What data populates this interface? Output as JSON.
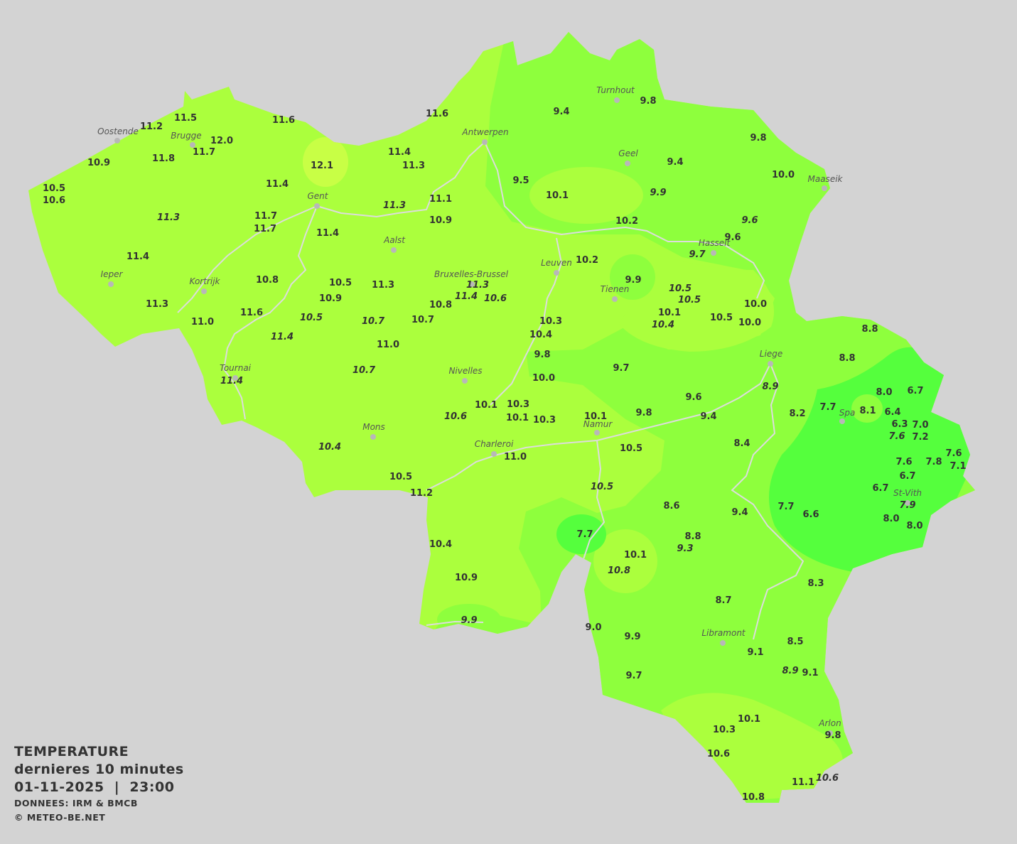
{
  "legend": {
    "title": "TEMPERATURE",
    "period": "dernieres 10 minutes",
    "datetime": "01-11-2025  |  23:00",
    "source": "DONNEES: IRM & BMCB",
    "copyright": "© METEO-BE.NET"
  },
  "colors": {
    "background": "#d3d3d3",
    "zone_warm": "#abff3d",
    "zone_warmest": "#c8ff45",
    "zone_mid": "#8eff3d",
    "zone_cold": "#55ff3d",
    "rivers": "#dcdcdc",
    "text": "#333333"
  },
  "cities": [
    "Oostende",
    "Brugge",
    "Antwerpen",
    "Turnhout",
    "Geel",
    "Maaseik",
    "Gent",
    "Aalst",
    "Hasselt",
    "Leuven",
    "Bruxelles-Brussel",
    "Ieper",
    "Kortrijk",
    "Tienen",
    "Liege",
    "Tournai",
    "Nivelles",
    "Spa",
    "Mons",
    "Charleroi",
    "Namur",
    "St-Vith",
    "Libramont",
    "Arlon"
  ],
  "stations": [
    {
      "v": "11.5"
    },
    {
      "v": "11.2"
    },
    {
      "v": "12.0"
    },
    {
      "v": "11.7"
    },
    {
      "v": "10.9"
    },
    {
      "v": "11.8"
    },
    {
      "v": "11.6"
    },
    {
      "v": "12.1"
    },
    {
      "v": "11.6"
    },
    {
      "v": "10.5"
    },
    {
      "v": "10.6"
    },
    {
      "v": "11.4"
    },
    {
      "v": "11.4"
    },
    {
      "v": "11.3"
    },
    {
      "v": "11.3",
      "italic": true
    },
    {
      "v": "11.7"
    },
    {
      "v": "11.7"
    },
    {
      "v": "11.3",
      "italic": true
    },
    {
      "v": "11.1"
    },
    {
      "v": "10.9"
    },
    {
      "v": "11.4"
    },
    {
      "v": "11.4"
    },
    {
      "v": "10.8"
    },
    {
      "v": "10.5"
    },
    {
      "v": "11.3"
    },
    {
      "v": "11.3",
      "italic": true
    },
    {
      "v": "11.4",
      "italic": true
    },
    {
      "v": "10.6",
      "italic": true
    },
    {
      "v": "10.9"
    },
    {
      "v": "10.8"
    },
    {
      "v": "11.3"
    },
    {
      "v": "11.6"
    },
    {
      "v": "11.0"
    },
    {
      "v": "10.5",
      "italic": true
    },
    {
      "v": "10.7",
      "italic": true
    },
    {
      "v": "10.7"
    },
    {
      "v": "11.4",
      "italic": true
    },
    {
      "v": "11.0"
    },
    {
      "v": "10.7",
      "italic": true
    },
    {
      "v": "11.4",
      "italic": true
    },
    {
      "v": "9.4"
    },
    {
      "v": "9.8"
    },
    {
      "v": "9.8"
    },
    {
      "v": "9.4"
    },
    {
      "v": "10.0"
    },
    {
      "v": "9.5"
    },
    {
      "v": "10.1"
    },
    {
      "v": "9.9",
      "italic": true
    },
    {
      "v": "9.6",
      "italic": true
    },
    {
      "v": "10.2"
    },
    {
      "v": "9.6"
    },
    {
      "v": "9.7",
      "italic": true
    },
    {
      "v": "10.2"
    },
    {
      "v": "9.9"
    },
    {
      "v": "10.5",
      "italic": true
    },
    {
      "v": "10.5",
      "italic": true
    },
    {
      "v": "10.1"
    },
    {
      "v": "10.4",
      "italic": true
    },
    {
      "v": "10.5"
    },
    {
      "v": "10.0"
    },
    {
      "v": "10.0"
    },
    {
      "v": "10.3"
    },
    {
      "v": "10.4"
    },
    {
      "v": "9.8"
    },
    {
      "v": "9.7"
    },
    {
      "v": "10.0"
    },
    {
      "v": "8.8"
    },
    {
      "v": "8.8"
    },
    {
      "v": "8.9",
      "italic": true
    },
    {
      "v": "8.0"
    },
    {
      "v": "6.7"
    },
    {
      "v": "9.6"
    },
    {
      "v": "9.4"
    },
    {
      "v": "9.8"
    },
    {
      "v": "8.2"
    },
    {
      "v": "7.7"
    },
    {
      "v": "8.1"
    },
    {
      "v": "6.4"
    },
    {
      "v": "6.3"
    },
    {
      "v": "7.0"
    },
    {
      "v": "7.6",
      "italic": true
    },
    {
      "v": "7.2"
    },
    {
      "v": "10.6",
      "italic": true
    },
    {
      "v": "10.1"
    },
    {
      "v": "10.3"
    },
    {
      "v": "10.1"
    },
    {
      "v": "10.3"
    },
    {
      "v": "10.1"
    },
    {
      "v": "8.4"
    },
    {
      "v": "7.6"
    },
    {
      "v": "7.8"
    },
    {
      "v": "7.6"
    },
    {
      "v": "7.1"
    },
    {
      "v": "6.7"
    },
    {
      "v": "6.7"
    },
    {
      "v": "10.4",
      "italic": true
    },
    {
      "v": "10.5"
    },
    {
      "v": "11.0"
    },
    {
      "v": "10.5"
    },
    {
      "v": "11.2"
    },
    {
      "v": "10.5",
      "italic": true
    },
    {
      "v": "8.6"
    },
    {
      "v": "9.4"
    },
    {
      "v": "7.7"
    },
    {
      "v": "6.6"
    },
    {
      "v": "7.9",
      "italic": true
    },
    {
      "v": "8.0"
    },
    {
      "v": "8.0"
    },
    {
      "v": "7.7"
    },
    {
      "v": "10.4"
    },
    {
      "v": "8.8"
    },
    {
      "v": "9.3",
      "italic": true
    },
    {
      "v": "10.1"
    },
    {
      "v": "10.8",
      "italic": true
    },
    {
      "v": "10.9"
    },
    {
      "v": "8.3"
    },
    {
      "v": "8.7"
    },
    {
      "v": "9.9",
      "italic": true
    },
    {
      "v": "9.0"
    },
    {
      "v": "9.9"
    },
    {
      "v": "9.1"
    },
    {
      "v": "8.5"
    },
    {
      "v": "8.9",
      "italic": true
    },
    {
      "v": "9.1"
    },
    {
      "v": "9.7"
    },
    {
      "v": "10.1"
    },
    {
      "v": "10.3"
    },
    {
      "v": "9.8"
    },
    {
      "v": "10.6"
    },
    {
      "v": "11.1"
    },
    {
      "v": "10.6",
      "italic": true
    },
    {
      "v": "10.8"
    }
  ]
}
